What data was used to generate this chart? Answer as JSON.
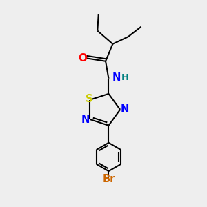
{
  "bg_color": "#eeeeee",
  "bond_color": "#000000",
  "atom_colors": {
    "O": "#ff0000",
    "N": "#0000ff",
    "S": "#cccc00",
    "Br": "#cc6600",
    "H": "#008080",
    "C": "#000000"
  },
  "bond_width": 1.5,
  "font_size": 9.5
}
